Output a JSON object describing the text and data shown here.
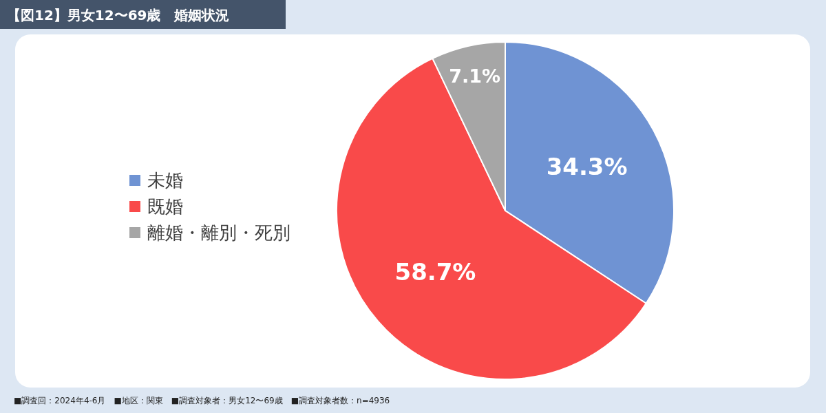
{
  "chart_data": {
    "type": "pie",
    "title": "【図12】男女12〜69歳　婚姻状況",
    "categories": [
      "未婚",
      "既婚",
      "離婚・離別・死別"
    ],
    "values": [
      34.3,
      58.7,
      7.1
    ],
    "colors": [
      "#6f93d3",
      "#f94a4a",
      "#a6a6a6"
    ],
    "value_labels": [
      "34.3%",
      "58.7%",
      "7.1%"
    ],
    "legend": "left",
    "annotations": [
      "■調査回：2024年4-6月　■地区：関東　■調査対象者：男女12〜69歳　■調査対象者数：n=4936"
    ]
  }
}
